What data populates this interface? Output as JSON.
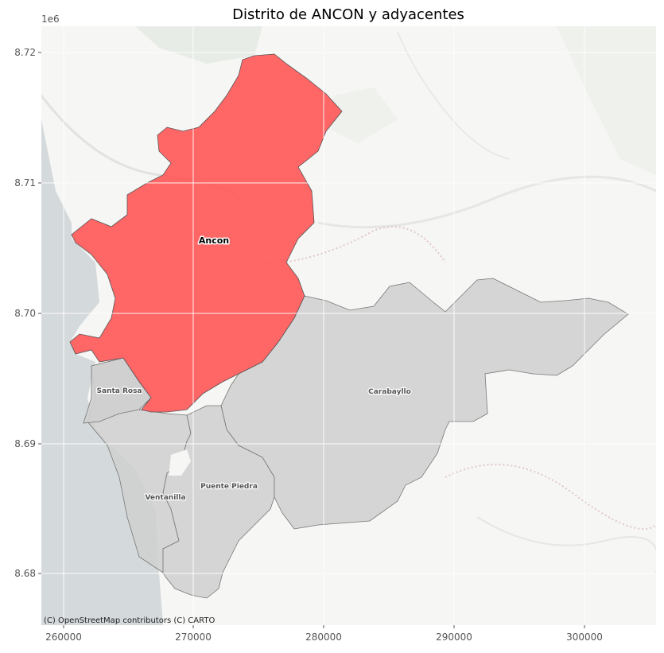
{
  "title": "Distrito de ANCON y adyacentes",
  "axes": {
    "y_offset_label": "1e6",
    "x_ticks": [
      "260000",
      "270000",
      "280000",
      "290000",
      "300000"
    ],
    "y_ticks": [
      "8.72",
      "8.71",
      "8.70",
      "8.69",
      "8.68"
    ]
  },
  "districts": [
    {
      "name": "Ancon",
      "highlighted": true
    },
    {
      "name": "Santa Rosa",
      "highlighted": false
    },
    {
      "name": "Carabayllo",
      "highlighted": false
    },
    {
      "name": "Puente Piedra",
      "highlighted": false
    },
    {
      "name": "Ventanilla",
      "highlighted": false
    }
  ],
  "colors": {
    "highlight": "#ff5a5a",
    "neighbor": "#cfcfcf",
    "sea": "#d4d9dc",
    "land": "#f6f6f4",
    "grid": "#ffffff"
  },
  "attribution": "(C) OpenStreetMap contributors (C) CARTO"
}
